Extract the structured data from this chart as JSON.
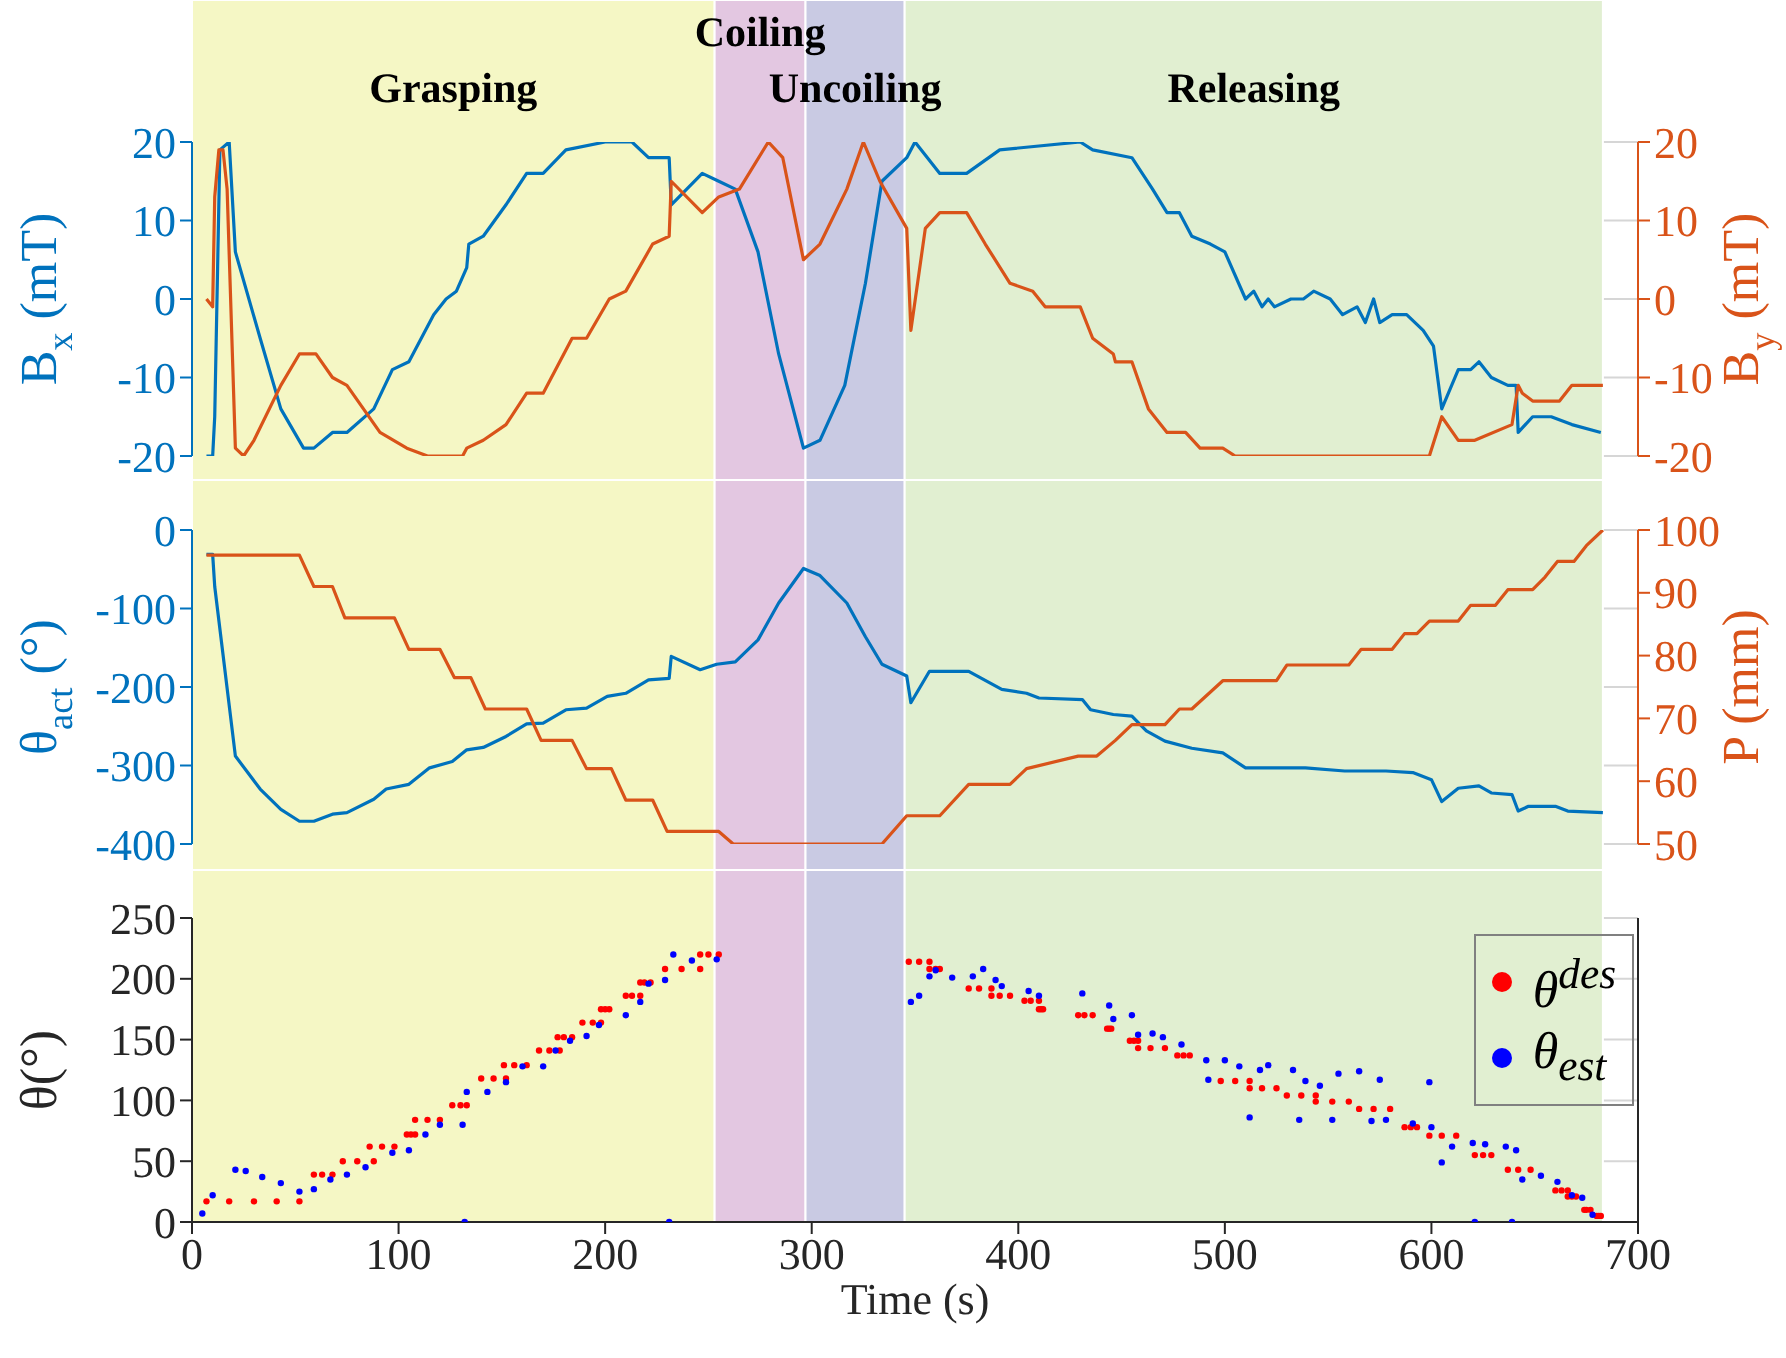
{
  "chart_data": [
    {
      "type": "line",
      "ylabel": "B$_{x}$ (mT)",
      "y2label": "B$_{y}$ (mT)",
      "xlim": [
        0,
        700
      ],
      "xticks": [
        0,
        100,
        200,
        300,
        400,
        500,
        600,
        700
      ],
      "ylim": [
        -20,
        20
      ],
      "yticks": [
        -20,
        -10,
        0,
        10,
        20
      ],
      "y2lim": [
        -20,
        20
      ],
      "y2ticks": [
        -20,
        -10,
        0,
        10,
        20
      ],
      "grid": true,
      "tick_labels": "y",
      "bands": [
        {
          "axis": "x",
          "from": 0,
          "to": 253,
          "label": "Grasping",
          "color": "#f5f7c5"
        },
        {
          "axis": "x",
          "from": 253,
          "to": 297,
          "label": "Coiling",
          "color": "#e3c7e1"
        },
        {
          "axis": "x",
          "from": 297,
          "to": 345,
          "label": "Uncoiling",
          "color": "#c9cae3"
        },
        {
          "axis": "x",
          "from": 345,
          "to": 683,
          "label": "Releasing",
          "color": "#e1efd1"
        }
      ],
      "series": [
        {
          "color": "#0072bd",
          "axis": "y",
          "x": [
            7,
            10,
            11,
            13.5,
            18,
            21,
            33,
            43,
            54,
            59,
            68,
            75,
            88,
            97,
            105,
            117,
            123,
            128,
            133,
            134,
            141,
            152,
            162,
            170,
            181,
            200,
            213,
            221,
            231,
            232,
            247,
            255,
            263,
            274,
            284,
            296,
            304,
            316,
            326,
            334,
            346,
            350,
            362,
            375,
            391,
            430,
            436,
            455,
            465,
            472,
            478,
            484,
            493,
            500,
            510,
            514,
            518,
            521,
            524,
            532,
            538,
            543,
            551,
            557,
            564,
            568,
            572,
            575,
            581,
            588,
            596,
            601,
            605,
            613,
            619,
            623,
            629,
            637,
            641,
            642,
            649,
            658,
            668,
            682
          ],
          "values": [
            -20,
            -20,
            -15,
            19,
            20,
            6,
            -5,
            -14,
            -19,
            -19,
            -17,
            -17,
            -14,
            -9,
            -8,
            -2,
            0,
            1,
            4,
            7,
            8,
            12,
            16,
            16,
            19,
            20,
            20,
            18,
            18,
            12,
            16,
            15,
            14,
            6,
            -7,
            -19,
            -18,
            -11,
            2,
            15,
            18,
            20,
            16,
            16,
            19,
            20,
            19,
            18,
            14,
            11,
            11,
            8,
            7,
            6,
            0,
            1,
            -1,
            0,
            -1,
            0,
            0,
            1,
            0,
            -2,
            -1,
            -3,
            0,
            -3,
            -2,
            -2,
            -4,
            -6,
            -14,
            -9,
            -9,
            -8,
            -10,
            -11,
            -11,
            -17,
            -15,
            -15,
            -16,
            -17
          ]
        },
        {
          "color": "#d95319",
          "axis": "y2",
          "x": [
            7,
            10,
            11,
            13,
            15,
            17,
            21,
            25,
            30,
            43,
            52,
            60,
            68,
            75,
            91,
            104,
            114,
            131,
            133,
            141,
            152,
            162,
            170,
            184,
            191,
            202,
            210,
            223,
            231,
            232,
            247,
            255,
            265,
            279,
            286,
            296,
            304,
            317,
            325,
            333,
            346,
            348,
            355,
            362,
            375,
            384,
            396,
            407,
            413,
            430,
            436,
            446,
            447,
            455,
            463,
            472,
            481,
            488,
            499,
            505,
            559,
            599,
            605,
            613,
            621,
            639,
            642,
            644,
            649,
            662,
            668,
            683
          ],
          "values": [
            0,
            -1,
            13,
            19,
            19,
            14,
            -19,
            -20,
            -18,
            -11,
            -7,
            -7,
            -10,
            -11,
            -17,
            -19,
            -20,
            -20,
            -19,
            -18,
            -16,
            -12,
            -12,
            -5,
            -5,
            0,
            1,
            7,
            8,
            15,
            11,
            13,
            14,
            20,
            18,
            5,
            7,
            14,
            20,
            15,
            9,
            -4,
            9,
            11,
            11,
            7,
            2,
            1,
            -1,
            -1,
            -5,
            -7,
            -8,
            -8,
            -14,
            -17,
            -17,
            -19,
            -19,
            -20,
            -20,
            -20,
            -15,
            -18,
            -18,
            -16,
            -11,
            -12,
            -13,
            -13,
            -11,
            -11
          ]
        }
      ]
    },
    {
      "type": "line",
      "ylabel": "θ$_{act}$ (°)",
      "y2label": "P (mm)",
      "xlim": [
        0,
        700
      ],
      "xticks": [
        0,
        100,
        200,
        300,
        400,
        500,
        600,
        700
      ],
      "ylim": [
        -400,
        0
      ],
      "yticks": [
        -400,
        -300,
        -200,
        -100,
        0
      ],
      "y2lim": [
        50,
        100
      ],
      "y2ticks": [
        50,
        60,
        70,
        80,
        90,
        100
      ],
      "grid": true,
      "tick_labels": "y",
      "bands": [
        {
          "axis": "x",
          "from": 0,
          "to": 253,
          "color": "#f5f7c5"
        },
        {
          "axis": "x",
          "from": 253,
          "to": 297,
          "color": "#e3c7e1"
        },
        {
          "axis": "x",
          "from": 297,
          "to": 345,
          "color": "#c9cae3"
        },
        {
          "axis": "x",
          "from": 345,
          "to": 683,
          "color": "#e1efd1"
        }
      ],
      "series": [
        {
          "color": "#0072bd",
          "axis": "y",
          "x": [
            7,
            10,
            11,
            21,
            33,
            43,
            52,
            59,
            68,
            75,
            88,
            94,
            105,
            115,
            126,
            133,
            141,
            152,
            162,
            170,
            181,
            191,
            201,
            210,
            221,
            231,
            232,
            246,
            254,
            263,
            274,
            284,
            296,
            304,
            317,
            326,
            334,
            346,
            348,
            357,
            376,
            392,
            404,
            410,
            431,
            435,
            446,
            455,
            462,
            471,
            484,
            499,
            510,
            520,
            539,
            558,
            578,
            591,
            600,
            605,
            613,
            623,
            629,
            639,
            642,
            647,
            660,
            666,
            683
          ],
          "values": [
            -31,
            -31,
            -72,
            -288,
            -330,
            -356,
            -371,
            -371,
            -362,
            -360,
            -343,
            -330,
            -324,
            -303,
            -295,
            -280,
            -277,
            -263,
            -247,
            -246,
            -229,
            -227,
            -212,
            -208,
            -191,
            -189,
            -161,
            -178,
            -171,
            -168,
            -140,
            -93,
            -49,
            -58,
            -93,
            -136,
            -171,
            -186,
            -220,
            -180,
            -180,
            -203,
            -208,
            -214,
            -216,
            -229,
            -235,
            -237,
            -256,
            -269,
            -278,
            -284,
            -303,
            -303,
            -303,
            -307,
            -307,
            -309,
            -318,
            -346,
            -329,
            -326,
            -335,
            -337,
            -358,
            -352,
            -352,
            -358,
            -360
          ]
        },
        {
          "color": "#d95319",
          "axis": "y2",
          "x": [
            7,
            52,
            59,
            68,
            74,
            98,
            105,
            120,
            127,
            135,
            142,
            162,
            169,
            184,
            191,
            203,
            210,
            223,
            230,
            255,
            262,
            334,
            346,
            362,
            376,
            396,
            404,
            429,
            438,
            447,
            455,
            471,
            478,
            484,
            499,
            525,
            530,
            560,
            566,
            581,
            587,
            593,
            599,
            613,
            619,
            631,
            637,
            649,
            655,
            661,
            669,
            675,
            683
          ],
          "values": [
            96,
            96,
            91,
            91,
            86,
            86,
            81,
            81,
            76.5,
            76.5,
            71.5,
            71.5,
            66.5,
            66.5,
            62,
            62,
            57,
            57,
            52,
            52,
            50,
            50,
            54.5,
            54.5,
            59.5,
            59.5,
            62,
            64,
            64,
            66.5,
            69,
            69,
            71.5,
            71.5,
            76,
            76,
            78.5,
            78.5,
            81,
            81,
            83.5,
            83.5,
            85.5,
            85.5,
            88,
            88,
            90.5,
            90.5,
            92.5,
            95,
            95,
            97.5,
            100
          ]
        }
      ]
    },
    {
      "type": "scatter",
      "ylabel": "θ(°)",
      "xlabel": "Time (s)",
      "xlim": [
        0,
        700
      ],
      "xticks": [
        0,
        100,
        200,
        300,
        400,
        500,
        600,
        700
      ],
      "ylim": [
        0,
        250
      ],
      "yticks": [
        0,
        50,
        100,
        150,
        200,
        250
      ],
      "grid": true,
      "legend": "top right",
      "marker": "circle",
      "bands": [
        {
          "axis": "x",
          "from": 0,
          "to": 253,
          "color": "#f5f7c5"
        },
        {
          "axis": "x",
          "from": 253,
          "to": 297,
          "color": "#e3c7e1"
        },
        {
          "axis": "x",
          "from": 297,
          "to": 345,
          "color": "#c9cae3"
        },
        {
          "axis": "x",
          "from": 345,
          "to": 683,
          "color": "#e1efd1"
        }
      ],
      "series": [
        {
          "name": "θ$^{des}$",
          "color": "#ff0000",
          "x": [
            7,
            18,
            30,
            41,
            52,
            59,
            63,
            68,
            73,
            80,
            88,
            86,
            92,
            98,
            104,
            106,
            108,
            108,
            114,
            120,
            126,
            130,
            133,
            140,
            146,
            152,
            151,
            156,
            162,
            168,
            173,
            178,
            177,
            180,
            184,
            189,
            194,
            198,
            198,
            200,
            202,
            210,
            213,
            217,
            217,
            219,
            222,
            229,
            237,
            246,
            246,
            250,
            255,
            347,
            352,
            357,
            357,
            360,
            362,
            376,
            381,
            387,
            387,
            391,
            396,
            403,
            406,
            410,
            410,
            411,
            412,
            429,
            432,
            436,
            443,
            444,
            445,
            454,
            456,
            458,
            458,
            464,
            471,
            477,
            480,
            483,
            498,
            505,
            512,
            512,
            518,
            525,
            530,
            537,
            544,
            544,
            552,
            560,
            565,
            572,
            580,
            587,
            590,
            593,
            599,
            605,
            612,
            621,
            625,
            629,
            637,
            642,
            648,
            660,
            663,
            666,
            666,
            668,
            670,
            674,
            675,
            677,
            680,
            681,
            682
          ],
          "values": [
            17,
            17,
            17,
            17,
            17,
            39,
            39,
            39,
            50,
            50,
            50,
            62,
            62,
            62,
            72,
            72,
            72,
            84,
            84,
            84,
            96,
            96,
            96,
            118,
            118,
            118,
            129,
            129,
            129,
            141,
            141,
            141,
            152,
            152,
            152,
            164,
            164,
            164,
            175,
            175,
            175,
            186,
            186,
            186,
            197,
            197,
            197,
            208,
            208,
            208,
            220,
            220,
            220,
            214,
            214,
            214,
            208,
            208,
            208,
            192,
            192,
            192,
            186,
            186,
            186,
            182,
            182,
            182,
            175,
            175,
            175,
            170,
            170,
            170,
            159,
            159,
            159,
            149,
            149,
            149,
            143,
            143,
            143,
            137,
            137,
            137,
            116,
            116,
            116,
            110,
            110,
            110,
            104,
            104,
            104,
            99,
            99,
            99,
            93,
            93,
            93,
            78,
            78,
            78,
            71,
            71,
            71,
            55,
            55,
            55,
            43,
            43,
            43,
            26,
            26,
            26,
            21,
            21,
            21,
            10,
            10,
            10,
            5,
            5,
            5
          ]
        },
        {
          "name": "θ$_{est}$",
          "color": "#0000ff",
          "x": [
            5,
            10,
            21,
            26,
            34,
            43,
            52,
            59,
            67,
            75,
            84,
            97,
            105,
            113,
            120,
            131,
            132,
            133,
            143,
            152,
            160,
            170,
            176,
            183,
            191,
            197,
            210,
            217,
            221,
            229,
            231,
            233,
            242,
            254,
            348,
            352,
            357,
            360,
            368,
            378,
            383,
            389,
            392,
            405,
            410,
            431,
            444,
            446,
            455,
            458,
            465,
            470,
            479,
            491,
            492,
            500,
            507,
            512,
            517,
            521,
            533,
            536,
            539,
            546,
            552,
            555,
            565,
            571,
            575,
            578,
            591,
            599,
            600,
            605,
            610,
            620,
            621,
            626,
            636,
            639,
            641,
            644,
            653,
            661,
            668,
            673,
            678
          ],
          "values": [
            7,
            22,
            43,
            42,
            37,
            32,
            25,
            27,
            35,
            39,
            45,
            57,
            59,
            72,
            80,
            80,
            0,
            107,
            107,
            115,
            128,
            128,
            141,
            149,
            153,
            162,
            170,
            181,
            196,
            199,
            0,
            220,
            215,
            216,
            181,
            186,
            202,
            207,
            201,
            202,
            208,
            199,
            194,
            190,
            186,
            188,
            178,
            167,
            170,
            154,
            155,
            152,
            146,
            133,
            117,
            133,
            128,
            86,
            125,
            129,
            125,
            84,
            116,
            112,
            84,
            122,
            124,
            83,
            117,
            84,
            81,
            115,
            78,
            49,
            62,
            65,
            0,
            64,
            62,
            0,
            59,
            35,
            38,
            33,
            22,
            20,
            6
          ]
        }
      ]
    }
  ]
}
